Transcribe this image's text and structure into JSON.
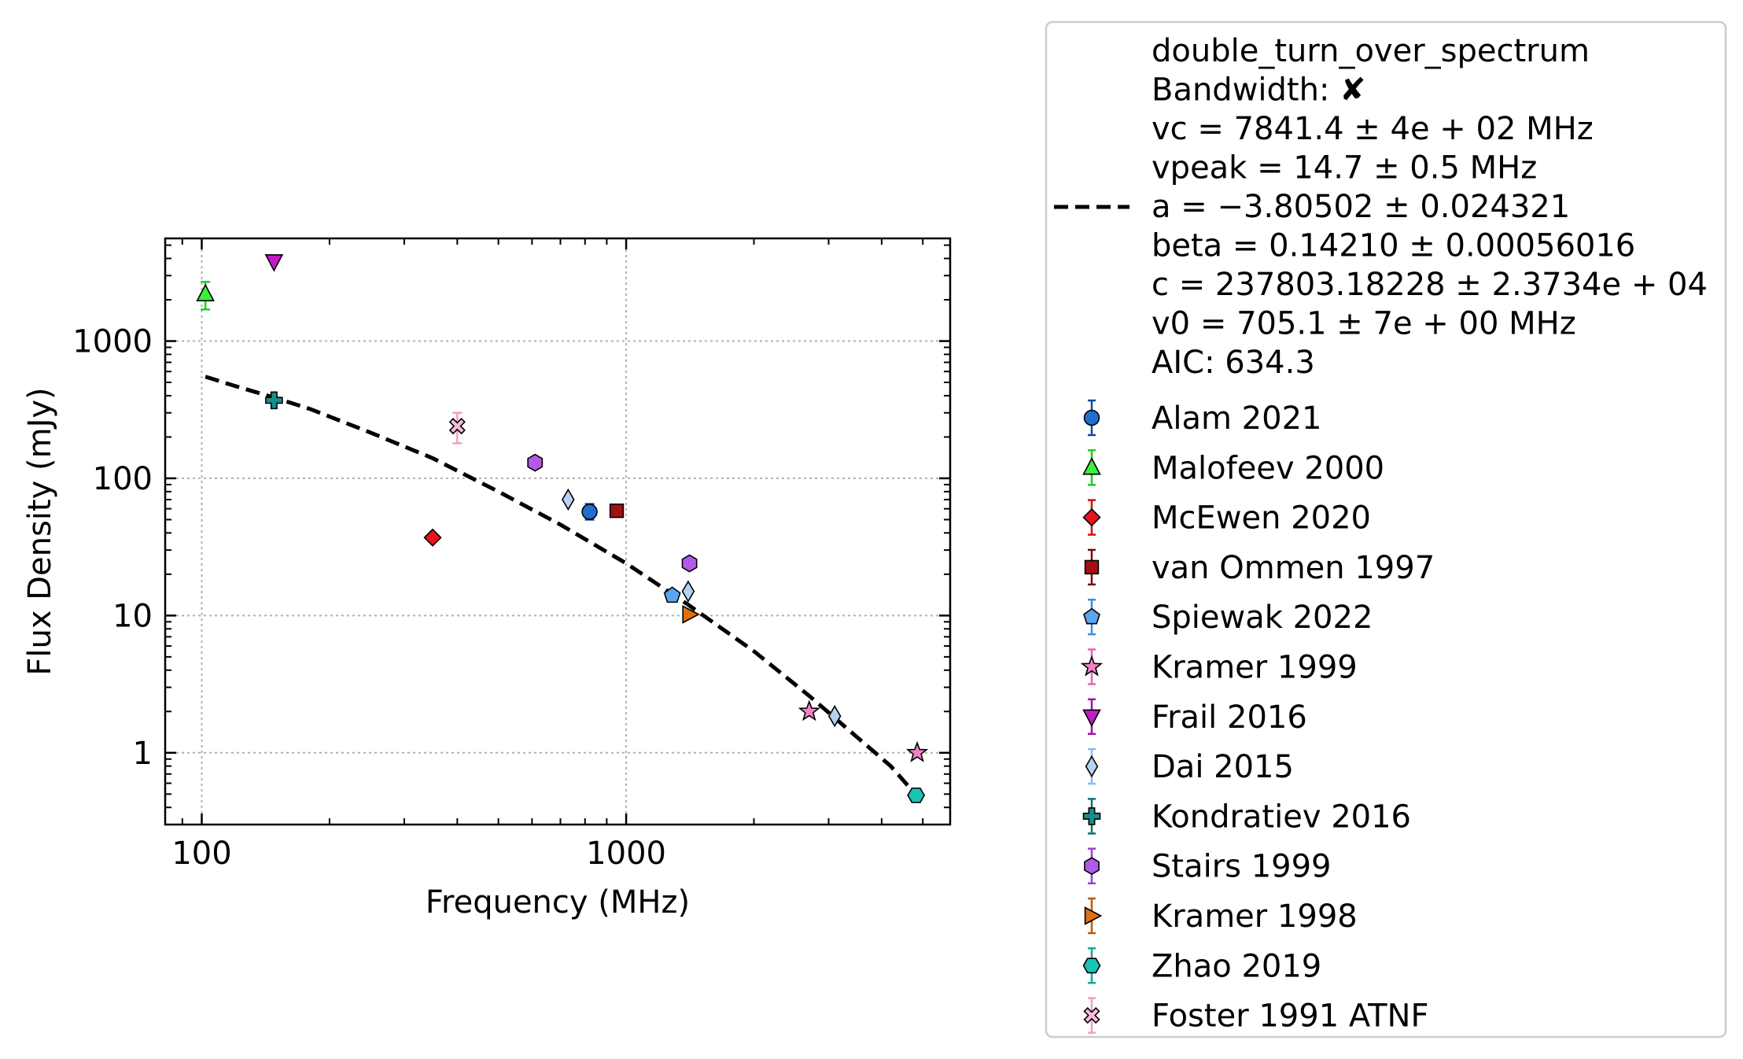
{
  "chart_data": {
    "type": "scatter",
    "xlabel": "Frequency (MHz)",
    "ylabel": "Flux Density (mJy)",
    "xscale": "log",
    "yscale": "log",
    "xlim": [
      82,
      5800
    ],
    "ylim": [
      0.3,
      5600
    ],
    "xticks": [
      {
        "value": 100,
        "label": "100"
      },
      {
        "value": 1000,
        "label": "1000"
      }
    ],
    "yticks": [
      {
        "value": 1,
        "label": "1"
      },
      {
        "value": 10,
        "label": "10"
      },
      {
        "value": 100,
        "label": "100"
      },
      {
        "value": 1000,
        "label": "1000"
      }
    ],
    "grid": true,
    "legend_placement": "outside right",
    "fit": {
      "label_lines": [
        "double_turn_over_spectrum",
        "Bandwidth: ✘",
        "vc = 7841.4 ± 4e + 02 MHz",
        "vpeak = 14.7 ± 0.5 MHz",
        "a = −3.80502 ± 0.024321",
        "beta = 0.14210 ± 0.00056016",
        "c = 237803.18228 ± 2.3734e + 04",
        "v0 = 705.1 ± 7e + 00 MHz",
        "AIC: 634.3"
      ],
      "color": "#000000",
      "style": "dashed",
      "points": [
        [
          102,
          550
        ],
        [
          120,
          470
        ],
        [
          147,
          390
        ],
        [
          180,
          320
        ],
        [
          250,
          215
        ],
        [
          350,
          140
        ],
        [
          500,
          80
        ],
        [
          700,
          46
        ],
        [
          1000,
          24
        ],
        [
          1400,
          12
        ],
        [
          2000,
          5.5
        ],
        [
          2700,
          2.6
        ],
        [
          3500,
          1.3
        ],
        [
          4200,
          0.8
        ],
        [
          4800,
          0.5
        ]
      ]
    },
    "series": [
      {
        "name": "Alam 2021",
        "marker": "circle",
        "color": "#1f6fd1",
        "edge": "#104a9e",
        "points": [
          {
            "x": 820,
            "y": 57,
            "yerr": [
              7,
              8
            ]
          }
        ]
      },
      {
        "name": "Malofeev 2000",
        "marker": "triangle-up",
        "color": "#3cf03c",
        "edge": "#22cc22",
        "points": [
          {
            "x": 102,
            "y": 2200,
            "yerr": [
              500,
              500
            ]
          }
        ]
      },
      {
        "name": "McEwen 2020",
        "marker": "diamond",
        "color": "#e8141c",
        "edge": "#d11010",
        "points": [
          {
            "x": 350,
            "y": 37,
            "yerr": [
              0,
              0
            ]
          }
        ]
      },
      {
        "name": "van Ommen 1997",
        "marker": "square",
        "color": "#a01016",
        "edge": "#7a0a0e",
        "points": [
          {
            "x": 950,
            "y": 58,
            "yerr": [
              0,
              0
            ]
          }
        ]
      },
      {
        "name": "Spiewak 2022",
        "marker": "pentagon",
        "color": "#5aa6ee",
        "edge": "#3a8ee8",
        "points": [
          {
            "x": 1284,
            "y": 14,
            "yerr": [
              0,
              0
            ]
          }
        ]
      },
      {
        "name": "Kramer 1999",
        "marker": "star",
        "color": "#f082c8",
        "edge": "#e066b3",
        "points": [
          {
            "x": 2700,
            "y": 2.0,
            "yerr": [
              0,
              0
            ]
          },
          {
            "x": 4850,
            "y": 1.0,
            "yerr": [
              0,
              0
            ]
          }
        ]
      },
      {
        "name": "Frail 2016",
        "marker": "triangle-down",
        "color": "#c21cc8",
        "edge": "#a010a8",
        "points": [
          {
            "x": 148,
            "y": 3800,
            "yerr": [
              0,
              0
            ]
          }
        ]
      },
      {
        "name": "Dai 2015",
        "marker": "thin-diamond",
        "color": "#b6d2f2",
        "edge": "#8fb8ea",
        "points": [
          {
            "x": 730,
            "y": 70,
            "yerr": [
              0,
              0
            ]
          },
          {
            "x": 1400,
            "y": 15,
            "yerr": [
              0,
              0
            ]
          },
          {
            "x": 3100,
            "y": 1.85,
            "yerr": [
              0,
              0
            ]
          }
        ]
      },
      {
        "name": "Kondratiev 2016",
        "marker": "plus",
        "color": "#1a8c8c",
        "edge": "#0f7070",
        "points": [
          {
            "x": 148,
            "y": 370,
            "yerr": [
              0,
              0
            ]
          }
        ]
      },
      {
        "name": "Stairs 1999",
        "marker": "hexagon",
        "color": "#b25ae8",
        "edge": "#9a40d8",
        "points": [
          {
            "x": 610,
            "y": 130,
            "yerr": [
              0,
              0
            ]
          },
          {
            "x": 1410,
            "y": 24,
            "yerr": [
              0,
              0
            ]
          }
        ]
      },
      {
        "name": "Kramer 1998",
        "marker": "triangle-right",
        "color": "#e07010",
        "edge": "#c05a08",
        "points": [
          {
            "x": 1410,
            "y": 10.2,
            "yerr": [
              0,
              0
            ]
          }
        ]
      },
      {
        "name": "Zhao 2019",
        "marker": "hexagon2",
        "color": "#18c4b4",
        "edge": "#10a89a",
        "points": [
          {
            "x": 4820,
            "y": 0.49,
            "yerr": [
              0,
              0
            ]
          }
        ]
      },
      {
        "name": "Foster 1991 ATNF",
        "marker": "x-filled",
        "color": "#f6bcd8",
        "edge": "#ee9ec6",
        "points": [
          {
            "x": 400,
            "y": 240,
            "yerr": [
              60,
              60
            ]
          }
        ]
      }
    ]
  }
}
